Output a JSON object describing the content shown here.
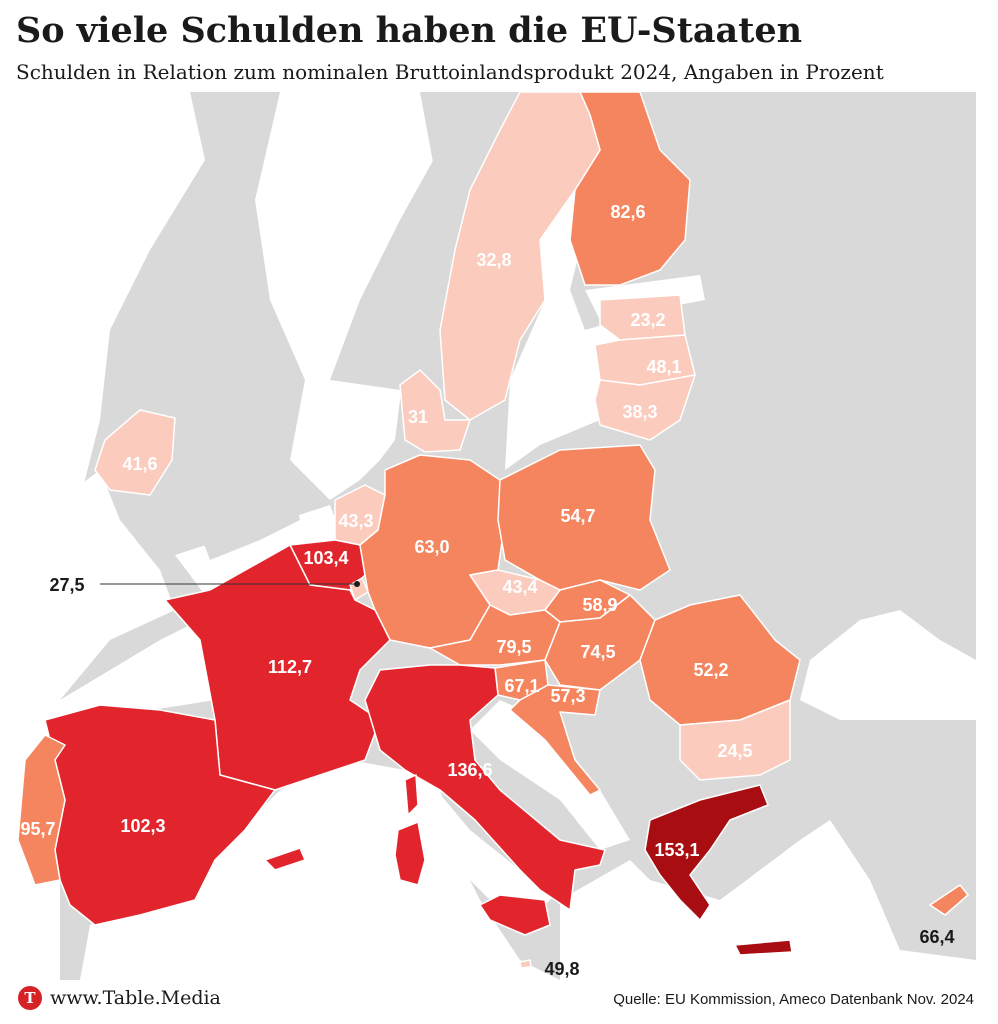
{
  "header": {
    "title": "So viele Schulden haben die EU-Staaten",
    "subtitle": "Schulden in Relation zum nominalen Bruttoinlandsprodukt 2024, Angaben in Prozent"
  },
  "colors": {
    "land": "#d9d9d9",
    "sea": "#ffffff",
    "low": "#fbcbbd",
    "mid": "#f5855f",
    "high": "#e2252c",
    "very_high": "#a80d12"
  },
  "countries": [
    {
      "id": "finnland",
      "value": "82,6",
      "color": "#f5855f"
    },
    {
      "id": "schweden",
      "value": "32,8",
      "color": "#fbcbbd"
    },
    {
      "id": "estland",
      "value": "23,2",
      "color": "#fbcbbd"
    },
    {
      "id": "lettland",
      "value": "48,1",
      "color": "#fbcbbd"
    },
    {
      "id": "litauen",
      "value": "38,3",
      "color": "#fbcbbd"
    },
    {
      "id": "daenemark",
      "value": "31",
      "color": "#fbcbbd"
    },
    {
      "id": "irland",
      "value": "41,6",
      "color": "#fbcbbd"
    },
    {
      "id": "niederlande",
      "value": "43,3",
      "color": "#fbcbbd"
    },
    {
      "id": "belgien",
      "value": "103,4",
      "color": "#e2252c"
    },
    {
      "id": "luxemburg",
      "value": "27,5",
      "color": "#fbcbbd"
    },
    {
      "id": "deutschland",
      "value": "63,0",
      "color": "#f5855f"
    },
    {
      "id": "polen",
      "value": "54,7",
      "color": "#f5855f"
    },
    {
      "id": "tschechien",
      "value": "43,4",
      "color": "#fbcbbd"
    },
    {
      "id": "slowakei",
      "value": "58,9",
      "color": "#f5855f"
    },
    {
      "id": "oesterreich",
      "value": "79,5",
      "color": "#f5855f"
    },
    {
      "id": "ungarn",
      "value": "74,5",
      "color": "#f5855f"
    },
    {
      "id": "slowenien",
      "value": "67,1",
      "color": "#f5855f"
    },
    {
      "id": "kroatien",
      "value": "57,3",
      "color": "#f5855f"
    },
    {
      "id": "rumaenien",
      "value": "52,2",
      "color": "#f5855f"
    },
    {
      "id": "bulgarien",
      "value": "24,5",
      "color": "#fbcbbd"
    },
    {
      "id": "frankreich",
      "value": "112,7",
      "color": "#e2252c"
    },
    {
      "id": "italien",
      "value": "136,6",
      "color": "#e2252c"
    },
    {
      "id": "spanien",
      "value": "102,3",
      "color": "#e2252c"
    },
    {
      "id": "portugal",
      "value": "95,7",
      "color": "#f5855f"
    },
    {
      "id": "griechenland",
      "value": "153,1",
      "color": "#a80d12"
    },
    {
      "id": "malta",
      "value": "49,8",
      "color": "#fbcbbd"
    },
    {
      "id": "zypern",
      "value": "66,4",
      "color": "#f5855f"
    }
  ],
  "footer": {
    "logo_letter": "T",
    "brand": "www.Table.Media",
    "source": "Quelle: EU Kommission, Ameco Datenbank Nov. 2024"
  }
}
